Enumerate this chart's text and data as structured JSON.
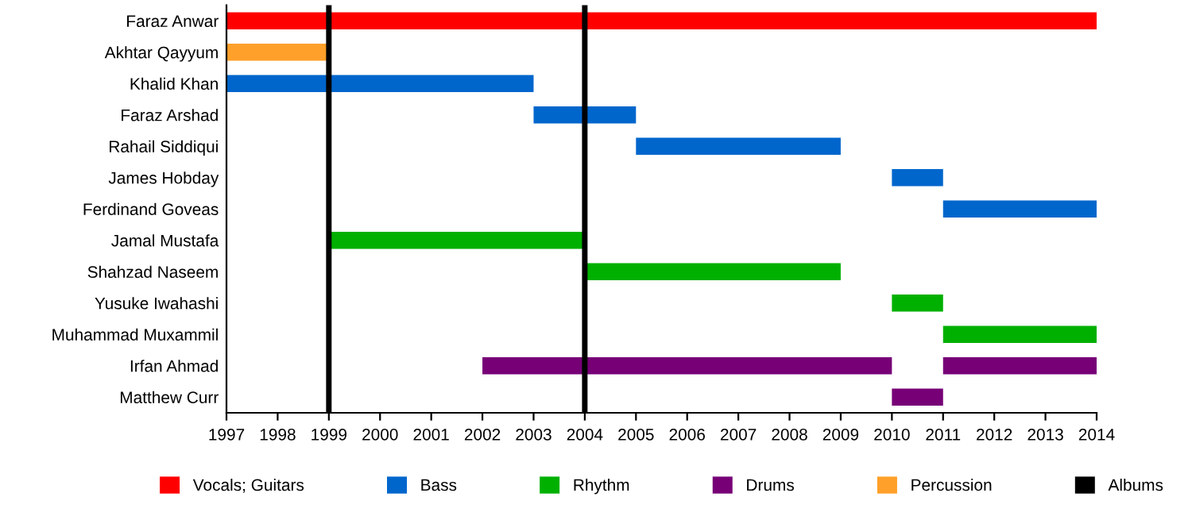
{
  "chart_data": {
    "type": "bar",
    "orientation": "horizontal",
    "categories": [
      "Faraz Anwar",
      "Akhtar Qayyum",
      "Khalid Khan",
      "Faraz Arshad",
      "Rahail Siddiqui",
      "James Hobday",
      "Ferdinand Goveas",
      "Jamal Mustafa",
      "Shahzad Naseem",
      "Yusuke Iwahashi",
      "Muhammad Muxammil",
      "Irfan Ahmad",
      "Matthew Curr"
    ],
    "series": [
      {
        "name": "Vocals; Guitars",
        "color": "#ff0000",
        "values": [
          17,
          null,
          null,
          null,
          null,
          null,
          null,
          null,
          null,
          null,
          null,
          null,
          null
        ],
        "base": [
          1997,
          null,
          null,
          null,
          null,
          null,
          null,
          null,
          null,
          null,
          null,
          null,
          null
        ]
      },
      {
        "name": "Bass",
        "color": "#0066cc",
        "values": [
          null,
          null,
          6,
          2,
          4,
          1,
          3,
          null,
          null,
          null,
          null,
          null,
          null
        ],
        "base": [
          null,
          null,
          1997,
          2003,
          2005,
          2010,
          2011,
          null,
          null,
          null,
          null,
          null,
          null
        ]
      },
      {
        "name": "Rhythm",
        "color": "#00b000",
        "values": [
          null,
          null,
          null,
          null,
          null,
          null,
          null,
          5,
          5,
          1,
          3,
          null,
          null
        ],
        "base": [
          null,
          null,
          null,
          null,
          null,
          null,
          null,
          1999,
          2004,
          2010,
          2011,
          null,
          null
        ]
      },
      {
        "name": "Drums",
        "color": "#770077",
        "values": [
          null,
          null,
          null,
          null,
          null,
          null,
          null,
          null,
          null,
          null,
          null,
          8,
          1
        ],
        "base": [
          null,
          null,
          null,
          null,
          null,
          null,
          null,
          null,
          null,
          null,
          null,
          2002,
          2010
        ]
      },
      {
        "color": "#770077",
        "values": [
          null,
          null,
          null,
          null,
          null,
          null,
          null,
          null,
          null,
          null,
          null,
          3,
          null
        ],
        "base": [
          null,
          null,
          null,
          null,
          null,
          null,
          null,
          null,
          null,
          null,
          null,
          2011,
          null
        ]
      },
      {
        "name": "Percussion",
        "color": "#ffa02a",
        "values": [
          null,
          2,
          null,
          null,
          null,
          null,
          null,
          null,
          null,
          null,
          null,
          null,
          null
        ],
        "base": [
          null,
          1997,
          null,
          null,
          null,
          null,
          null,
          null,
          null,
          null,
          null,
          null,
          null
        ]
      }
    ],
    "ref_lines": [
      {
        "axis": "x",
        "value": 1999,
        "label": "Albums",
        "color": "#000000"
      },
      {
        "axis": "x",
        "value": 2004,
        "color": "#000000"
      }
    ],
    "xlim": [
      1997,
      2014
    ],
    "xticks": [
      1997,
      1998,
      1999,
      2000,
      2001,
      2002,
      2003,
      2004,
      2005,
      2006,
      2007,
      2008,
      2009,
      2010,
      2011,
      2012,
      2013,
      2014
    ],
    "grid": false,
    "legend": "bottom"
  }
}
